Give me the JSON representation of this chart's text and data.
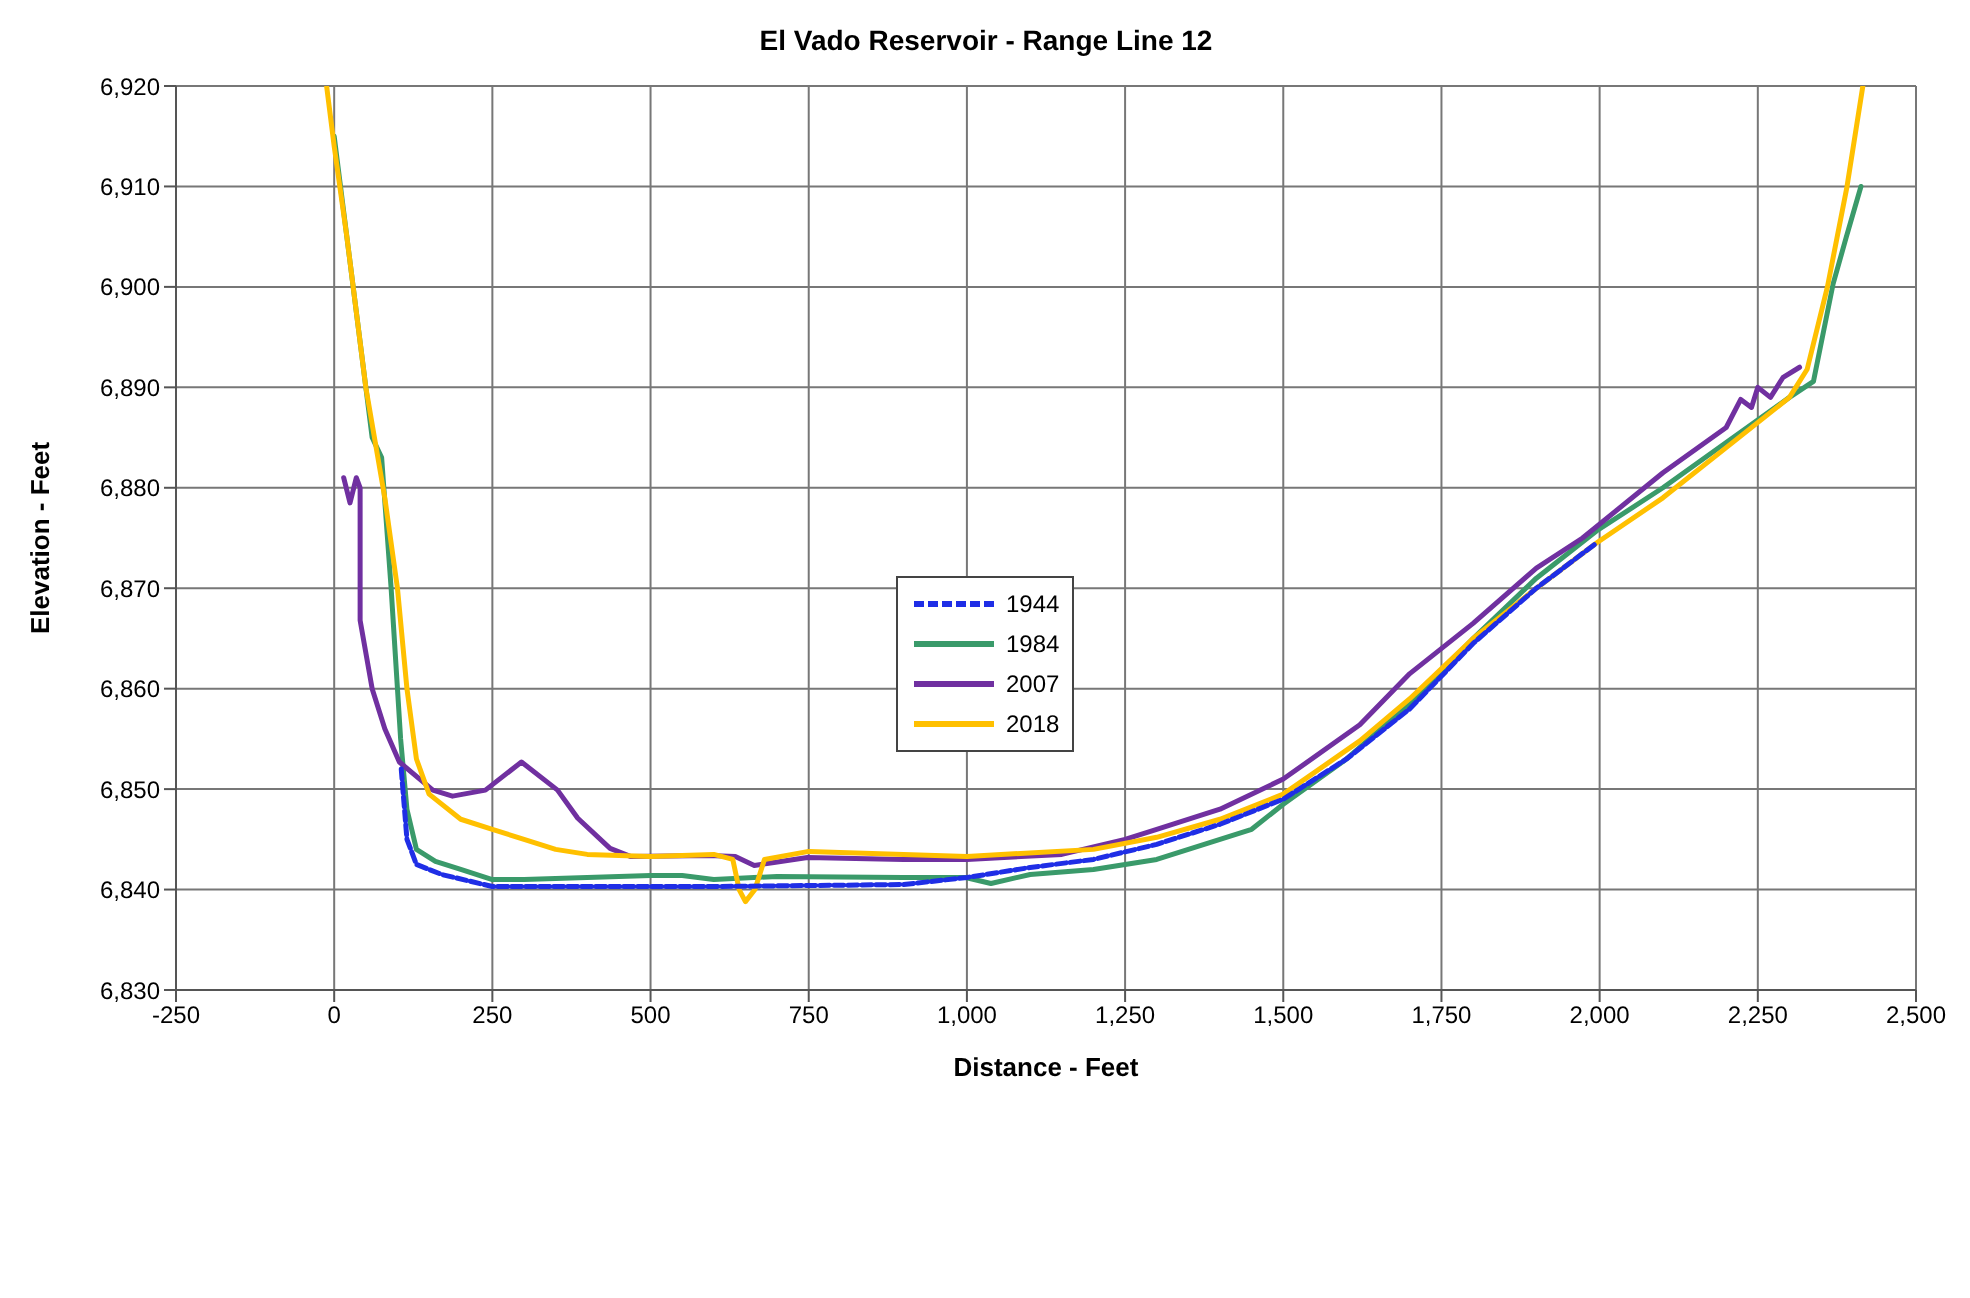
{
  "chart_data": {
    "type": "line",
    "title": "El Vado Reservoir - Range Line 12",
    "xlabel": "Distance - Feet",
    "ylabel": "Elevation - Feet",
    "xlim": [
      -250,
      2500
    ],
    "xticks": [
      -250,
      0,
      250,
      500,
      750,
      {
        "value": 1000,
        "label": "1,000"
      },
      {
        "value": 1250,
        "label": "1,250"
      },
      {
        "value": 1500,
        "label": "1,500"
      },
      {
        "value": 1750,
        "label": "1,750"
      },
      {
        "value": 2000,
        "label": "2,000"
      },
      {
        "value": 2250,
        "label": "2,250"
      },
      {
        "value": 2500,
        "label": "2,500"
      }
    ],
    "ylim": [
      6830,
      6920
    ],
    "yticks": [
      {
        "value": 6830,
        "label": "6,830"
      },
      {
        "value": 6840,
        "label": "6,840"
      },
      {
        "value": 6850,
        "label": "6,850"
      },
      {
        "value": 6860,
        "label": "6,860"
      },
      {
        "value": 6870,
        "label": "6,870"
      },
      {
        "value": 6880,
        "label": "6,880"
      },
      {
        "value": 6890,
        "label": "6,890"
      },
      {
        "value": 6900,
        "label": "6,900"
      },
      {
        "value": 6910,
        "label": "6,910"
      },
      {
        "value": 6920,
        "label": "6,920"
      }
    ],
    "grid": true,
    "legend": "center",
    "marker": "none",
    "series": [
      {
        "name": "1944",
        "color": "#1f2ee6",
        "line_style": "dashed",
        "x": [
          106,
          115,
          130,
          170,
          250,
          600,
          900,
          1000,
          1100,
          1200,
          1300,
          1400,
          1500,
          1600,
          1700,
          1800,
          1900,
          1995
        ],
        "values": [
          6852,
          6845,
          6842.5,
          6841.5,
          6840.3,
          6840.3,
          6840.5,
          6841.2,
          6842.2,
          6843,
          6844.5,
          6846.5,
          6849,
          6853,
          6858,
          6864.5,
          6870,
          6874.5
        ]
      },
      {
        "name": "1984",
        "color": "#3a9a6a",
        "line_style": "solid",
        "x": [
          0,
          30,
          60,
          75,
          90,
          105,
          115,
          130,
          160,
          200,
          250,
          300,
          400,
          500,
          550,
          600,
          700,
          900,
          998,
          1038,
          1100,
          1200,
          1300,
          1400,
          1450,
          1500,
          1600,
          1700,
          1800,
          1900,
          1995,
          2100,
          2200,
          2300,
          2338,
          2369,
          2390,
          2413
        ],
        "values": [
          6915,
          6900,
          6885,
          6883,
          6870,
          6855,
          6848,
          6844,
          6842.8,
          6842,
          6841,
          6841,
          6841.2,
          6841.4,
          6841.4,
          6841,
          6841.3,
          6841.2,
          6841.2,
          6840.6,
          6841.5,
          6842,
          6843,
          6845,
          6846,
          6848.5,
          6853,
          6858.5,
          6865,
          6871,
          6875.7,
          6880,
          6884.5,
          6889,
          6890.6,
          6900.3,
          6905,
          6910
        ]
      },
      {
        "name": "2007",
        "color": "#7030a0",
        "line_style": "solid",
        "x": [
          15,
          25,
          35,
          41,
          41,
          60,
          80,
          103,
          156,
          187,
          239,
          296,
          353,
          385,
          436,
          468,
          592,
          634,
          664,
          695,
          748,
          900,
          1000,
          1150,
          1250,
          1300,
          1400,
          1500,
          1621,
          1700,
          1800,
          1900,
          1973,
          2100,
          2200,
          2223,
          2240,
          2250,
          2270,
          2290,
          2316
        ],
        "values": [
          6881,
          6878.5,
          6881,
          6880,
          6866.8,
          6860,
          6856,
          6852.7,
          6849.9,
          6849.3,
          6849.9,
          6852.7,
          6849.9,
          6847.1,
          6844.1,
          6843.3,
          6843.4,
          6843.3,
          6842.4,
          6842.7,
          6843.2,
          6843,
          6843,
          6843.5,
          6845,
          6846,
          6848,
          6851,
          6856.4,
          6861.5,
          6866.5,
          6872,
          6875,
          6881.5,
          6886,
          6888.8,
          6888,
          6890,
          6889,
          6891,
          6892
        ]
      },
      {
        "name": "2018",
        "color": "#ffc000",
        "line_style": "solid",
        "x": [
          -12,
          0,
          20,
          50,
          80,
          100,
          115,
          130,
          150,
          200,
          250,
          300,
          350,
          400,
          500,
          600,
          630,
          640,
          650,
          665,
          680,
          750,
          900,
          1000,
          1200,
          1300,
          1400,
          1500,
          1621,
          1700,
          1800,
          1900,
          1995,
          2100,
          2200,
          2300,
          2328,
          2360,
          2391,
          2416
        ],
        "values": [
          6920,
          6914,
          6905,
          6890,
          6879,
          6870,
          6860,
          6853,
          6849.5,
          6847,
          6846,
          6845,
          6844,
          6843.5,
          6843.3,
          6843.5,
          6843,
          6840,
          6838.8,
          6840,
          6843,
          6843.8,
          6843.5,
          6843.3,
          6844,
          6845.2,
          6847,
          6849.5,
          6854.8,
          6859,
          6865,
          6870,
          6874.5,
          6879,
          6884,
          6889,
          6891.8,
          6900,
          6910,
          6920
        ]
      }
    ]
  }
}
